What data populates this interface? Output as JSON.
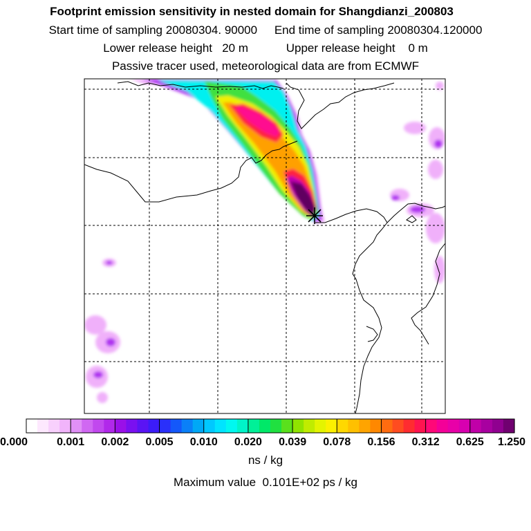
{
  "header": {
    "title": "Footprint emission sensitivity in nested domain for Shangdianzi_200803",
    "start_label": "Start time of sampling",
    "start_value": "20080304. 90000",
    "end_label": "End time of sampling",
    "end_value": "20080304.120000",
    "lower_label": "Lower release height",
    "lower_value": "20 m",
    "upper_label": "Upper release height",
    "upper_value": "0 m",
    "tracer_note": "Passive tracer used, meteorological data are from ECMWF"
  },
  "colorbar": {
    "ticks": [
      "0.000",
      "0.001",
      "0.002",
      "0.005",
      "0.010",
      "0.020",
      "0.039",
      "0.078",
      "0.156",
      "0.312",
      "0.625",
      "1.250"
    ],
    "colors": [
      "#ffffff",
      "#fde8fe",
      "#f8d0fd",
      "#f1b4fb",
      "#e090f6",
      "#d068f2",
      "#c148ee",
      "#b128ea",
      "#9a10e8",
      "#7a10f0",
      "#5a14f4",
      "#3c1cf8",
      "#2a30fa",
      "#1458fa",
      "#0a80f8",
      "#00a8f6",
      "#00c8ff",
      "#00e4ff",
      "#00f8f0",
      "#00f4c8",
      "#00f098",
      "#00e868",
      "#20e040",
      "#5ae01c",
      "#90e400",
      "#c0ec00",
      "#e4f400",
      "#fcf000",
      "#ffd800",
      "#ffc000",
      "#ffa400",
      "#ff8800",
      "#ff6c10",
      "#ff4c20",
      "#ff2c30",
      "#ff1450",
      "#ff0878",
      "#f40098",
      "#e800a8",
      "#d800b0",
      "#c000a8",
      "#a800a0",
      "#900090",
      "#700070"
    ],
    "unit": "ns / kg"
  },
  "footer": {
    "max_label": "Maximum value",
    "max_value": "0.101E+02 ps / kg"
  },
  "map": {
    "receptor": "Shangdianzi",
    "colors": {
      "plume_outer": "#f0b0fa",
      "plume_purple": "#b030f0",
      "plume_cyan": "#00f0f0",
      "plume_green": "#40e040",
      "plume_yellow": "#f0f000",
      "plume_orange": "#ffa000",
      "plume_red": "#ff2040",
      "plume_pink": "#ff0890",
      "plume_magenta": "#c000b0",
      "plume_dark": "#600060"
    }
  }
}
